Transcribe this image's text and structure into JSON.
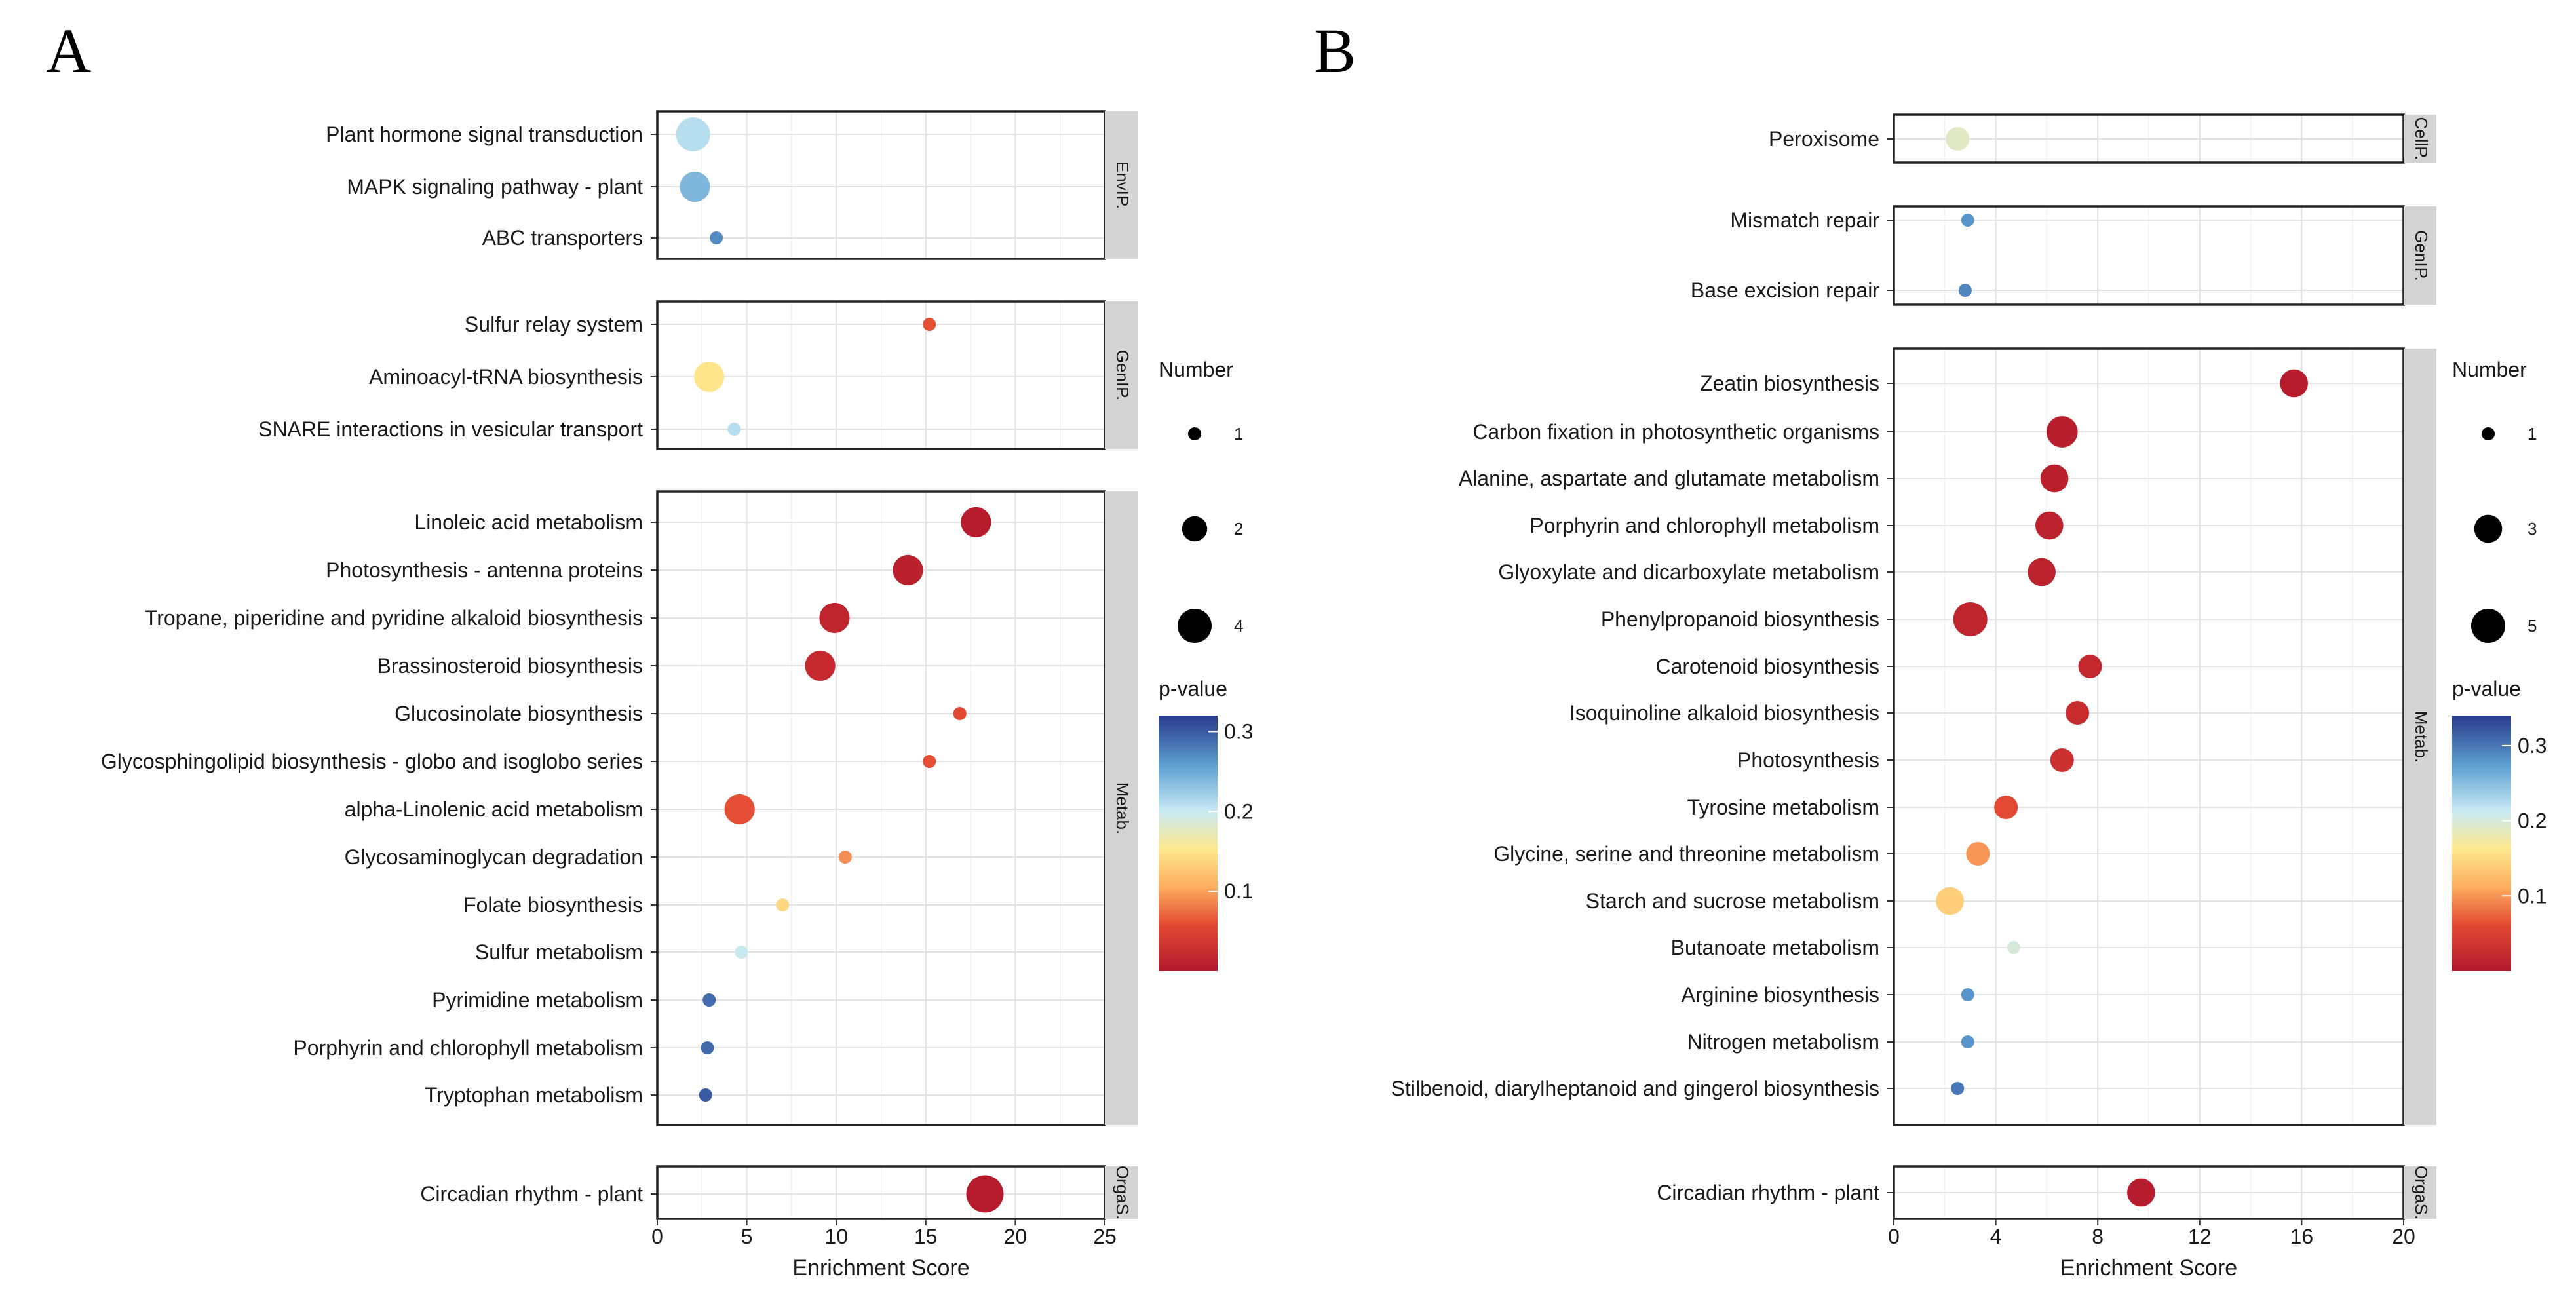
{
  "chart_data": [
    {
      "panel": "A",
      "type": "scatter",
      "xlabel": "Enrichment Score",
      "xlim": [
        0,
        25
      ],
      "xticks": [
        0,
        5,
        10,
        15,
        20,
        25
      ],
      "legend": {
        "size_title": "Number",
        "size_values": [
          1,
          2,
          4
        ],
        "color_title": "p-value",
        "color_ticks": [
          0.1,
          0.2,
          0.3
        ],
        "color_range": [
          0,
          0.32
        ]
      },
      "facets": [
        {
          "name": "EnvIP.",
          "rows": [
            {
              "term": "Plant hormone signal transduction",
              "x": 2.0,
              "n": 4,
              "p": 0.21
            },
            {
              "term": "MAPK signaling pathway - plant",
              "x": 2.1,
              "n": 3,
              "p": 0.24
            },
            {
              "term": "ABC transporters",
              "x": 3.3,
              "n": 1,
              "p": 0.27
            }
          ]
        },
        {
          "name": "GenIP.",
          "rows": [
            {
              "term": "Sulfur relay system",
              "x": 15.2,
              "n": 1,
              "p": 0.06
            },
            {
              "term": "Aminoacyl-tRNA biosynthesis",
              "x": 2.9,
              "n": 3,
              "p": 0.15
            },
            {
              "term": "SNARE interactions in vesicular transport",
              "x": 4.3,
              "n": 1,
              "p": 0.21
            }
          ]
        },
        {
          "name": "Metab.",
          "rows": [
            {
              "term": "Linoleic acid metabolism",
              "x": 17.8,
              "n": 3,
              "p": 0.005
            },
            {
              "term": "Photosynthesis - antenna proteins",
              "x": 14.0,
              "n": 3,
              "p": 0.01
            },
            {
              "term": "Tropane, piperidine and pyridine alkaloid biosynthesis",
              "x": 9.9,
              "n": 3,
              "p": 0.015
            },
            {
              "term": "Brassinosteroid biosynthesis",
              "x": 9.1,
              "n": 3,
              "p": 0.02
            },
            {
              "term": "Glucosinolate biosynthesis",
              "x": 16.9,
              "n": 1,
              "p": 0.055
            },
            {
              "term": "Glycosphingolipid biosynthesis - globo and isoglobo series",
              "x": 15.2,
              "n": 1,
              "p": 0.06
            },
            {
              "term": "alpha-Linolenic acid metabolism",
              "x": 4.6,
              "n": 3,
              "p": 0.06
            },
            {
              "term": "Glycosaminoglycan degradation",
              "x": 10.5,
              "n": 1,
              "p": 0.09
            },
            {
              "term": "Folate biosynthesis",
              "x": 7.0,
              "n": 1,
              "p": 0.14
            },
            {
              "term": "Sulfur metabolism",
              "x": 4.7,
              "n": 1,
              "p": 0.2
            },
            {
              "term": "Pyrimidine metabolism",
              "x": 2.9,
              "n": 1,
              "p": 0.29
            },
            {
              "term": "Porphyrin and chlorophyll metabolism",
              "x": 2.8,
              "n": 1,
              "p": 0.29
            },
            {
              "term": "Tryptophan metabolism",
              "x": 2.7,
              "n": 1,
              "p": 0.3
            }
          ]
        },
        {
          "name": "OrgaS.",
          "rows": [
            {
              "term": "Circadian rhythm - plant",
              "x": 18.3,
              "n": 5,
              "p": 0.003
            }
          ]
        }
      ]
    },
    {
      "panel": "B",
      "type": "scatter",
      "xlabel": "Enrichment Score",
      "xlim": [
        0,
        20
      ],
      "xticks": [
        0,
        4,
        8,
        12,
        16,
        20
      ],
      "legend": {
        "size_title": "Number",
        "size_values": [
          1,
          3,
          5
        ],
        "color_title": "p-value",
        "color_ticks": [
          0.1,
          0.2,
          0.3
        ],
        "color_range": [
          0,
          0.34
        ]
      },
      "facets": [
        {
          "name": "CellP.",
          "rows": [
            {
              "term": "Peroxisome",
              "x": 2.5,
              "n": 2,
              "p": 0.19
            }
          ]
        },
        {
          "name": "GenIP.",
          "rows": [
            {
              "term": "Mismatch repair",
              "x": 2.9,
              "n": 1,
              "p": 0.28
            },
            {
              "term": "Base excision repair",
              "x": 2.8,
              "n": 1,
              "p": 0.29
            }
          ]
        },
        {
          "name": "Metab.",
          "rows": [
            {
              "term": "Zeatin biosynthesis",
              "x": 15.7,
              "n": 3,
              "p": 0.005
            },
            {
              "term": "Carbon fixation in photosynthetic organisms",
              "x": 6.6,
              "n": 4,
              "p": 0.008
            },
            {
              "term": "Alanine, aspartate and glutamate metabolism",
              "x": 6.3,
              "n": 3,
              "p": 0.01
            },
            {
              "term": "Porphyrin and chlorophyll metabolism",
              "x": 6.1,
              "n": 3,
              "p": 0.012
            },
            {
              "term": "Glyoxylate and dicarboxylate metabolism",
              "x": 5.8,
              "n": 3,
              "p": 0.014
            },
            {
              "term": "Phenylpropanoid biosynthesis",
              "x": 3.0,
              "n": 5,
              "p": 0.016
            },
            {
              "term": "Carotenoid biosynthesis",
              "x": 7.7,
              "n": 2,
              "p": 0.02
            },
            {
              "term": "Isoquinoline alkaloid biosynthesis",
              "x": 7.2,
              "n": 2,
              "p": 0.025
            },
            {
              "term": "Photosynthesis",
              "x": 6.6,
              "n": 2,
              "p": 0.03
            },
            {
              "term": "Tyrosine metabolism",
              "x": 4.4,
              "n": 2,
              "p": 0.06
            },
            {
              "term": "Glycine, serine and threonine metabolism",
              "x": 3.3,
              "n": 2,
              "p": 0.1
            },
            {
              "term": "Starch and sucrose metabolism",
              "x": 2.2,
              "n": 3,
              "p": 0.14
            },
            {
              "term": "Butanoate metabolism",
              "x": 4.7,
              "n": 1,
              "p": 0.2
            },
            {
              "term": "Arginine biosynthesis",
              "x": 2.9,
              "n": 1,
              "p": 0.28
            },
            {
              "term": "Nitrogen metabolism",
              "x": 2.9,
              "n": 1,
              "p": 0.28
            },
            {
              "term": "Stilbenoid, diarylheptanoid and gingerol biosynthesis",
              "x": 2.5,
              "n": 1,
              "p": 0.3
            }
          ]
        },
        {
          "name": "OrgaS.",
          "rows": [
            {
              "term": "Circadian rhythm - plant",
              "x": 9.7,
              "n": 3,
              "p": 0.004
            }
          ]
        }
      ]
    }
  ]
}
